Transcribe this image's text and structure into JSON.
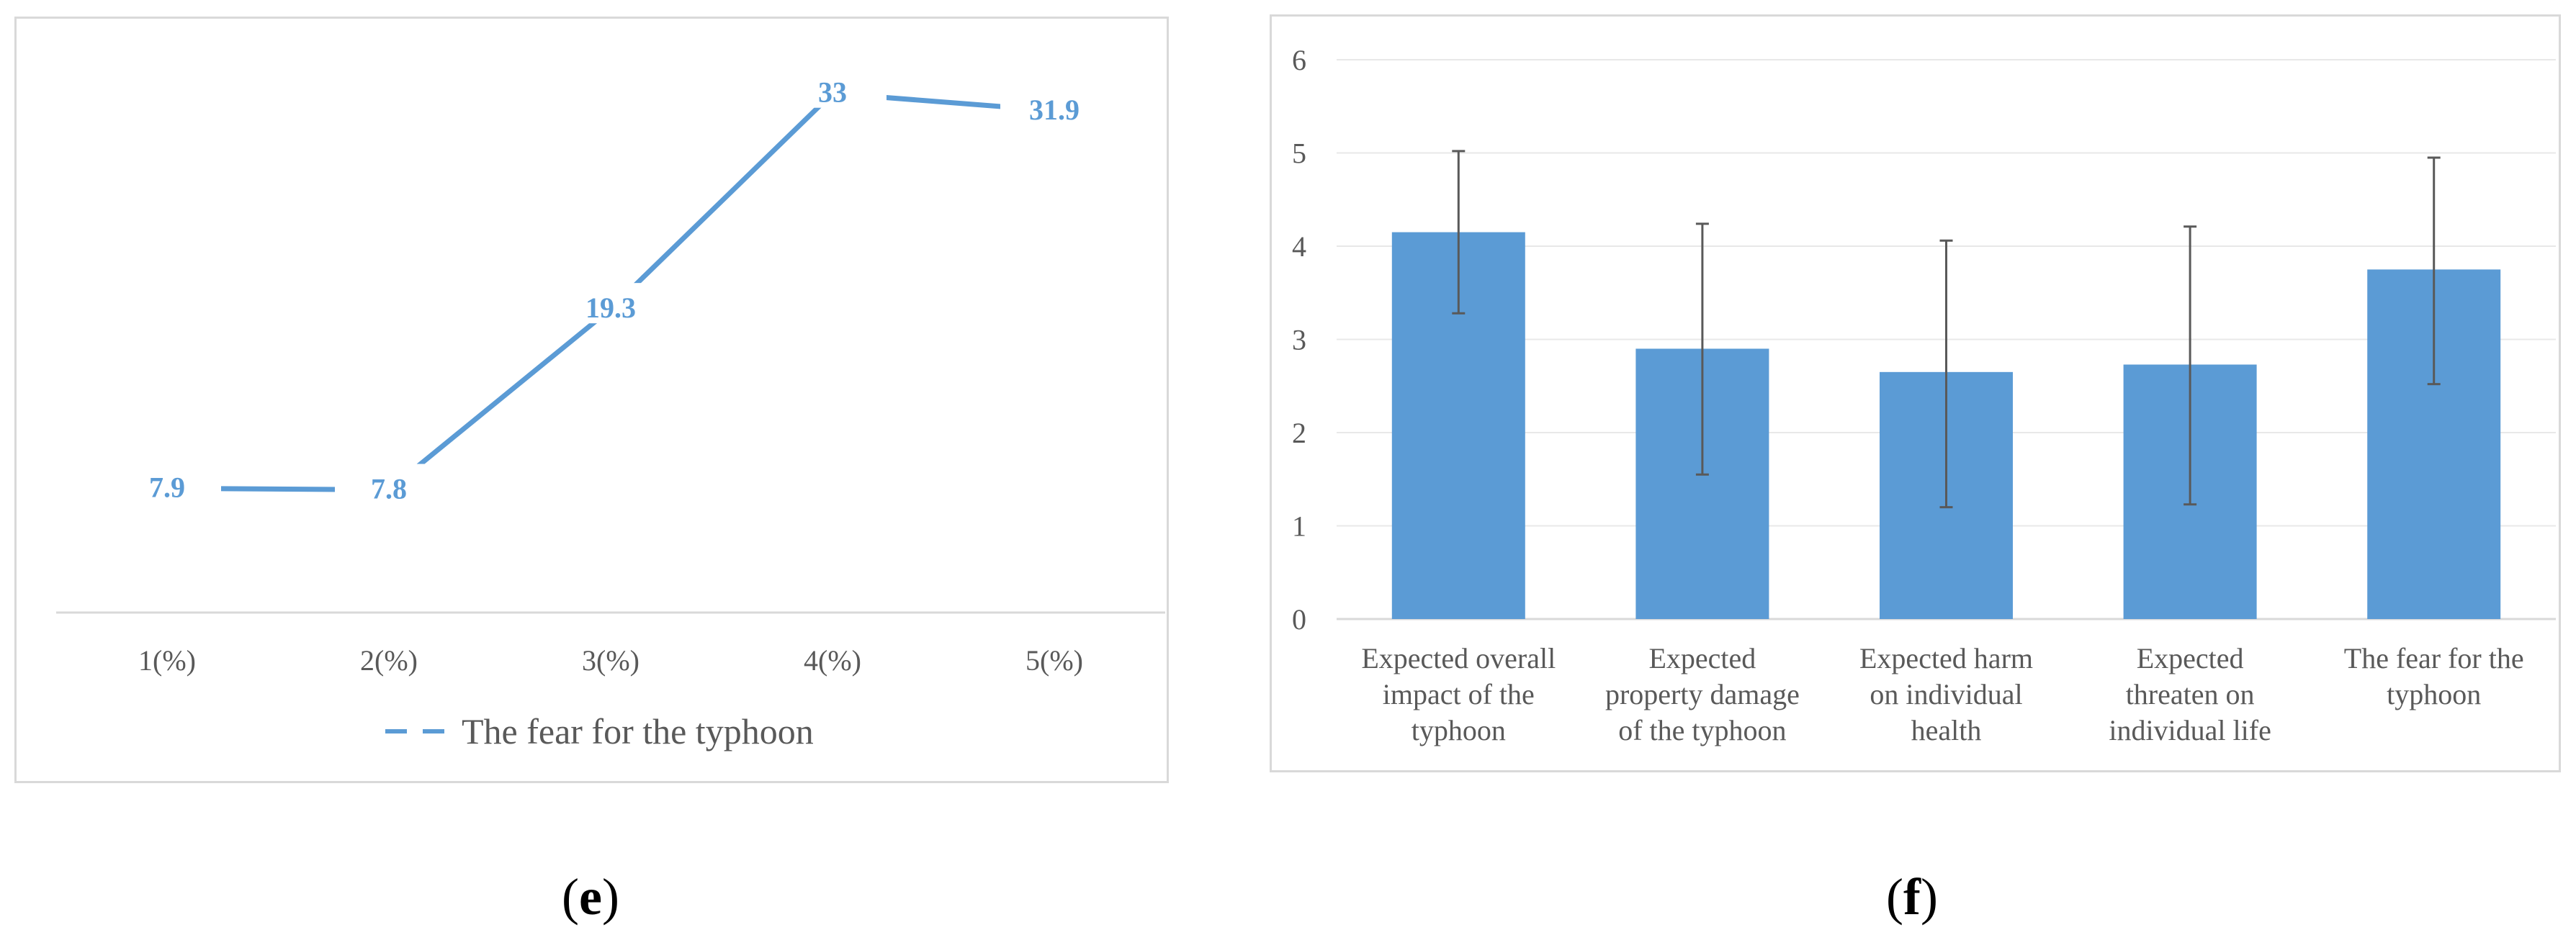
{
  "chart_data": [
    {
      "type": "line",
      "panel_label": "e",
      "categories": [
        "1(%)",
        "2(%)",
        "3(%)",
        "4(%)",
        "5(%)"
      ],
      "series": [
        {
          "name": "The fear for the typhoon",
          "values": [
            7.9,
            7.8,
            19.3,
            33,
            31.9
          ]
        }
      ],
      "data_labels": [
        "7.9",
        "7.8",
        "19.3",
        "33",
        "31.9"
      ],
      "ylim": [
        0,
        35
      ],
      "grid": false,
      "legend": "bottom",
      "color": "#5b9bd5"
    },
    {
      "type": "bar",
      "panel_label": "f",
      "categories": [
        [
          "Expected overall",
          "impact of the",
          "typhoon"
        ],
        [
          "Expected",
          "property damage",
          "of the typhoon"
        ],
        [
          "Expected harm",
          "on individual",
          "health"
        ],
        [
          "Expected",
          "threaten on",
          "individual life"
        ],
        [
          "The fear for the",
          "typhoon"
        ]
      ],
      "values": [
        4.15,
        2.9,
        2.65,
        2.73,
        3.75
      ],
      "error_low": [
        3.28,
        1.55,
        1.2,
        1.23,
        2.52
      ],
      "error_high": [
        5.02,
        4.24,
        4.06,
        4.21,
        4.95
      ],
      "yticks": [
        "0",
        "1",
        "2",
        "3",
        "4",
        "5",
        "6"
      ],
      "ylim": [
        0,
        6
      ],
      "grid": true,
      "color": "#5b9bd5"
    }
  ],
  "captions": {
    "e": "e",
    "f": "f"
  }
}
